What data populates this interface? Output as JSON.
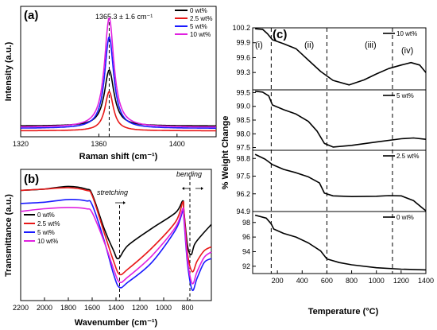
{
  "chart_data": [
    {
      "panel": "(a)",
      "type": "line",
      "xlabel": "Raman shift (cm⁻¹)",
      "ylabel": "Intensity (a.u.)",
      "xlim": [
        1320,
        1420
      ],
      "xticks": [
        "1320",
        "1360",
        "1400"
      ],
      "annotation": "1365.3 ± 1.6 cm⁻¹",
      "peak_position": 1365.3,
      "legend_position": "top-right",
      "series": [
        {
          "name": "0 wt%",
          "color": "#000000",
          "peak_rel": 0.52,
          "base_rel": 0.05,
          "width": 3.0
        },
        {
          "name": "2.5 wt%",
          "color": "#e81818",
          "peak_rel": 0.34,
          "base_rel": 0.01,
          "width": 2.6
        },
        {
          "name": "5 wt%",
          "color": "#1a1aff",
          "peak_rel": 0.8,
          "base_rel": 0.03,
          "width": 2.8
        },
        {
          "name": "10 wt%",
          "color": "#e020e0",
          "peak_rel": 0.96,
          "base_rel": 0.04,
          "width": 2.9
        }
      ]
    },
    {
      "panel": "(b)",
      "type": "line",
      "xlabel": "Wavenumber (cm⁻¹)",
      "ylabel": "Transmittance (a.u.)",
      "xlim": [
        2200,
        600
      ],
      "xticks": [
        "2200",
        "2000",
        "1800",
        "1600",
        "1400",
        "1200",
        "1000",
        "800"
      ],
      "annotations": [
        {
          "text": "stretching",
          "x": 1370
        },
        {
          "text": "bending",
          "x": 780
        }
      ],
      "legend_position": "middle-left",
      "series": [
        {
          "name": "0 wt%",
          "color": "#000000",
          "points": [
            [
              2200,
              0.84
            ],
            [
              2000,
              0.85
            ],
            [
              1800,
              0.87
            ],
            [
              1650,
              0.85
            ],
            [
              1600,
              0.81
            ],
            [
              1500,
              0.55
            ],
            [
              1420,
              0.38
            ],
            [
              1380,
              0.32
            ],
            [
              1300,
              0.42
            ],
            [
              1100,
              0.55
            ],
            [
              900,
              0.67
            ],
            [
              840,
              0.76
            ],
            [
              830,
              0.68
            ],
            [
              800,
              0.42
            ],
            [
              770,
              0.35
            ],
            [
              740,
              0.43
            ],
            [
              680,
              0.5
            ],
            [
              600,
              0.58
            ]
          ]
        },
        {
          "name": "2.5 wt%",
          "color": "#e81818",
          "points": [
            [
              2200,
              0.84
            ],
            [
              2000,
              0.85
            ],
            [
              1800,
              0.86
            ],
            [
              1650,
              0.84
            ],
            [
              1600,
              0.8
            ],
            [
              1500,
              0.52
            ],
            [
              1420,
              0.3
            ],
            [
              1370,
              0.2
            ],
            [
              1300,
              0.24
            ],
            [
              1100,
              0.4
            ],
            [
              900,
              0.6
            ],
            [
              840,
              0.75
            ],
            [
              830,
              0.68
            ],
            [
              800,
              0.36
            ],
            [
              760,
              0.22
            ],
            [
              720,
              0.3
            ],
            [
              660,
              0.38
            ],
            [
              600,
              0.41
            ]
          ]
        },
        {
          "name": "5 wt%",
          "color": "#1a1aff",
          "points": [
            [
              2200,
              0.74
            ],
            [
              2000,
              0.75
            ],
            [
              1800,
              0.77
            ],
            [
              1650,
              0.76
            ],
            [
              1600,
              0.73
            ],
            [
              1500,
              0.46
            ],
            [
              1420,
              0.2
            ],
            [
              1370,
              0.1
            ],
            [
              1300,
              0.14
            ],
            [
              1100,
              0.29
            ],
            [
              900,
              0.54
            ],
            [
              840,
              0.68
            ],
            [
              830,
              0.62
            ],
            [
              800,
              0.28
            ],
            [
              760,
              0.08
            ],
            [
              720,
              0.17
            ],
            [
              660,
              0.29
            ],
            [
              600,
              0.32
            ]
          ]
        },
        {
          "name": "10 wt%",
          "color": "#e020e0",
          "points": [
            [
              2200,
              0.68
            ],
            [
              2000,
              0.7
            ],
            [
              1800,
              0.71
            ],
            [
              1650,
              0.7
            ],
            [
              1600,
              0.67
            ],
            [
              1500,
              0.45
            ],
            [
              1420,
              0.24
            ],
            [
              1370,
              0.14
            ],
            [
              1300,
              0.18
            ],
            [
              1100,
              0.34
            ],
            [
              900,
              0.56
            ],
            [
              840,
              0.7
            ],
            [
              830,
              0.64
            ],
            [
              800,
              0.31
            ],
            [
              760,
              0.13
            ],
            [
              720,
              0.22
            ],
            [
              660,
              0.33
            ],
            [
              600,
              0.37
            ]
          ]
        }
      ]
    },
    {
      "panel": "(c)",
      "type": "line",
      "xlabel": "Temperature (°C)",
      "ylabel": "% Weight Change",
      "xlim": [
        0,
        1400
      ],
      "xticks": [
        "200",
        "400",
        "600",
        "800",
        "1000",
        "1200",
        "1400"
      ],
      "stage_labels": [
        "(i)",
        "(ii)",
        "(iii)",
        "(iv)"
      ],
      "stage_boundaries": [
        150,
        600,
        1130
      ],
      "subplots": [
        {
          "name": "10 wt%",
          "ylim": [
            98.95,
            100.2
          ],
          "yticks": [
            "100.2",
            "99.9",
            "99.6",
            "99.3"
          ],
          "points": [
            [
              20,
              100.18
            ],
            [
              80,
              100.17
            ],
            [
              120,
              100.08
            ],
            [
              160,
              99.96
            ],
            [
              250,
              99.88
            ],
            [
              350,
              99.78
            ],
            [
              450,
              99.55
            ],
            [
              550,
              99.32
            ],
            [
              650,
              99.14
            ],
            [
              780,
              99.05
            ],
            [
              900,
              99.15
            ],
            [
              1000,
              99.27
            ],
            [
              1100,
              99.38
            ],
            [
              1200,
              99.45
            ],
            [
              1280,
              99.5
            ],
            [
              1350,
              99.45
            ],
            [
              1400,
              99.3
            ]
          ]
        },
        {
          "name": "5 wt%",
          "ylim": [
            97.4,
            99.6
          ],
          "yticks": [
            "99.5",
            "99.0",
            "98.5",
            "98.0",
            "97.5"
          ],
          "points": [
            [
              20,
              99.55
            ],
            [
              80,
              99.52
            ],
            [
              130,
              99.38
            ],
            [
              160,
              99.05
            ],
            [
              250,
              98.88
            ],
            [
              350,
              98.72
            ],
            [
              450,
              98.45
            ],
            [
              520,
              98.1
            ],
            [
              580,
              97.65
            ],
            [
              650,
              97.52
            ],
            [
              800,
              97.58
            ],
            [
              1000,
              97.7
            ],
            [
              1200,
              97.82
            ],
            [
              1300,
              97.85
            ],
            [
              1400,
              97.8
            ]
          ]
        },
        {
          "name": "2.5 wt%",
          "ylim": [
            94.9,
            99.4
          ],
          "yticks": [
            "98.8",
            "97.5",
            "96.2",
            "94.9"
          ],
          "points": [
            [
              20,
              99.1
            ],
            [
              100,
              98.75
            ],
            [
              160,
              98.35
            ],
            [
              250,
              98.0
            ],
            [
              350,
              97.75
            ],
            [
              450,
              97.45
            ],
            [
              540,
              97.0
            ],
            [
              580,
              96.25
            ],
            [
              650,
              96.05
            ],
            [
              800,
              96.0
            ],
            [
              1000,
              96.02
            ],
            [
              1100,
              96.07
            ],
            [
              1200,
              96.05
            ],
            [
              1300,
              95.7
            ],
            [
              1380,
              95.1
            ],
            [
              1400,
              94.95
            ]
          ]
        },
        {
          "name": "0 wt%",
          "ylim": [
            91,
            99.5
          ],
          "yticks": [
            "98",
            "96",
            "94",
            "92"
          ],
          "points": [
            [
              20,
              99.0
            ],
            [
              110,
              98.6
            ],
            [
              150,
              97.8
            ],
            [
              170,
              97.1
            ],
            [
              250,
              96.5
            ],
            [
              350,
              96.0
            ],
            [
              450,
              95.2
            ],
            [
              550,
              94.1
            ],
            [
              600,
              93.0
            ],
            [
              700,
              92.5
            ],
            [
              800,
              92.2
            ],
            [
              1000,
              91.8
            ],
            [
              1200,
              91.6
            ],
            [
              1400,
              91.5
            ]
          ]
        }
      ]
    }
  ]
}
